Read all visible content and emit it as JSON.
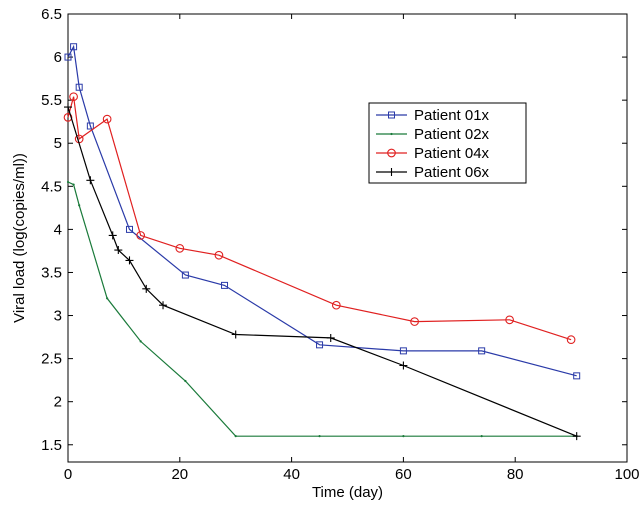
{
  "chart_data": {
    "type": "line",
    "title": "",
    "xlabel": "Time (day)",
    "ylabel": "Viral load (log(copies/ml))",
    "xlim": [
      0,
      100
    ],
    "ylim": [
      1.3,
      6.5
    ],
    "xticks": [
      0,
      20,
      40,
      60,
      80,
      100
    ],
    "yticks": [
      1.5,
      2,
      2.5,
      3,
      3.5,
      4,
      4.5,
      5,
      5.5,
      6,
      6.5
    ],
    "xtick_labels": [
      "0",
      "20",
      "40",
      "60",
      "80",
      "100"
    ],
    "ytick_labels": [
      "1.5",
      "2",
      "2.5",
      "3",
      "3.5",
      "4",
      "4.5",
      "5",
      "5.5",
      "6",
      "6.5"
    ],
    "grid": false,
    "legend_position": "top-right",
    "series": [
      {
        "name": "Patient 01x",
        "color": "#2a3aa8",
        "marker": "square",
        "x": [
          0,
          1,
          2,
          4,
          11,
          21,
          28,
          45,
          60,
          74,
          91
        ],
        "y": [
          6.0,
          6.12,
          5.65,
          5.2,
          4.0,
          3.47,
          3.35,
          2.66,
          2.59,
          2.59,
          2.3
        ]
      },
      {
        "name": "Patient 02x",
        "color": "#1a7a3a",
        "marker": "dot",
        "x": [
          0,
          1,
          2,
          7,
          13,
          21,
          30,
          45,
          60,
          74,
          91
        ],
        "y": [
          4.55,
          4.52,
          4.28,
          3.2,
          2.7,
          2.24,
          1.6,
          1.6,
          1.6,
          1.6,
          1.6
        ]
      },
      {
        "name": "Patient 04x",
        "color": "#e02020",
        "marker": "circle",
        "x": [
          0,
          1,
          2,
          7,
          13,
          20,
          27,
          48,
          62,
          79,
          90
        ],
        "y": [
          5.3,
          5.54,
          5.05,
          5.28,
          3.93,
          3.78,
          3.7,
          3.12,
          2.93,
          2.95,
          2.72
        ]
      },
      {
        "name": "Patient 06x",
        "color": "#000000",
        "marker": "plus",
        "x": [
          0,
          4,
          8,
          9,
          11,
          14,
          17,
          30,
          47,
          60,
          91
        ],
        "y": [
          5.42,
          4.57,
          3.93,
          3.76,
          3.64,
          3.31,
          3.12,
          2.78,
          2.74,
          2.42,
          1.6
        ]
      }
    ]
  }
}
